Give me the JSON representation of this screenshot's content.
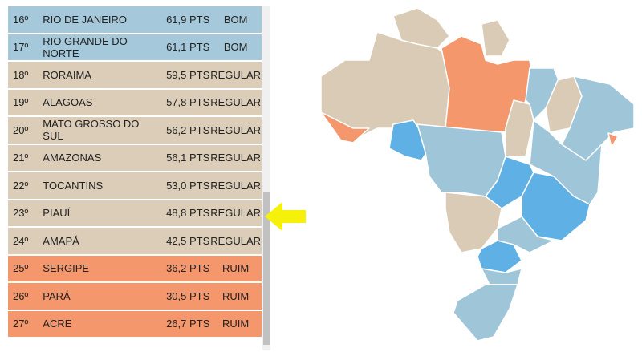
{
  "table": {
    "rows": [
      {
        "rank": "16º",
        "state": "Rio de Janeiro",
        "points": "61,9 PTS",
        "rating": "BOM",
        "color": "#a5c9da"
      },
      {
        "rank": "17º",
        "state": "Rio Grande do Norte",
        "points": "61,1 PTS",
        "rating": "BOM",
        "color": "#a5c9da"
      },
      {
        "rank": "18º",
        "state": "Roraima",
        "points": "59,5 PTS",
        "rating": "REGULAR",
        "color": "#dccdb8"
      },
      {
        "rank": "19º",
        "state": "Alagoas",
        "points": "57,8 PTS",
        "rating": "REGULAR",
        "color": "#dccdb8"
      },
      {
        "rank": "20º",
        "state": "Mato Grosso do Sul",
        "points": "56,2 PTS",
        "rating": "REGULAR",
        "color": "#dccdb8"
      },
      {
        "rank": "21º",
        "state": "Amazonas",
        "points": "56,1 PTS",
        "rating": "REGULAR",
        "color": "#dccdb8"
      },
      {
        "rank": "22º",
        "state": "Tocantins",
        "points": "53,0 PTS",
        "rating": "REGULAR",
        "color": "#dccdb8"
      },
      {
        "rank": "23º",
        "state": "Piauí",
        "points": "48,8 PTS",
        "rating": "REGULAR",
        "color": "#dccdb8"
      },
      {
        "rank": "24º",
        "state": "Amapá",
        "points": "42,5 PTS",
        "rating": "REGULAR",
        "color": "#dccdb8"
      },
      {
        "rank": "25º",
        "state": "Sergipe",
        "points": "36,2 PTS",
        "rating": "RUIM",
        "color": "#f4976c"
      },
      {
        "rank": "26º",
        "state": "Pará",
        "points": "30,5 PTS",
        "rating": "RUIM",
        "color": "#f4976c"
      },
      {
        "rank": "27º",
        "state": "Acre",
        "points": "26,7 PTS",
        "rating": "RUIM",
        "color": "#f4976c"
      }
    ]
  }
}
